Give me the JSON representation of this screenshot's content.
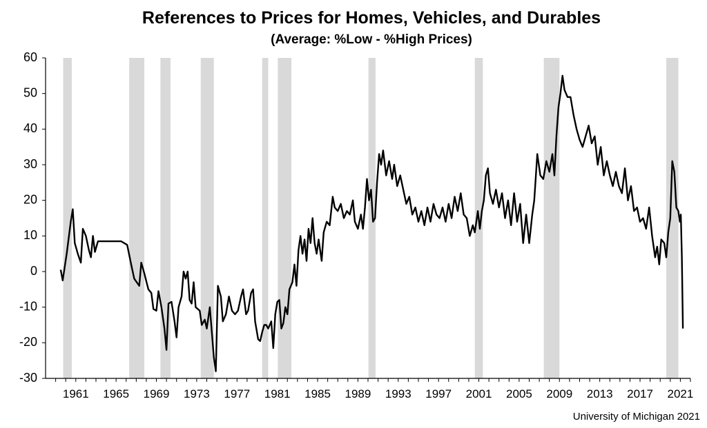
{
  "chart_data": {
    "type": "line",
    "title": "References to Prices for Homes, Vehicles, and Durables",
    "subtitle": "(Average:  %Low - %High Prices)",
    "xlabel": "",
    "ylabel": "",
    "xlim": [
      1958.5,
      2022.5
    ],
    "ylim": [
      -30,
      60
    ],
    "y_ticks": [
      60,
      50,
      40,
      30,
      20,
      10,
      0,
      -10,
      -20,
      -30
    ],
    "x_ticks": [
      "1961",
      "1965",
      "1969",
      "1973",
      "1977",
      "1981",
      "1985",
      "1989",
      "1993",
      "1997",
      "2001",
      "2005",
      "2009",
      "2013",
      "2017",
      "2021"
    ],
    "grid": false,
    "legend": "none",
    "line_color": "#000000",
    "recession_color": "#d9d9d9",
    "recessions": [
      [
        1960.25,
        1961.1
      ],
      [
        1966.8,
        1968.3
      ],
      [
        1969.9,
        1970.9
      ],
      [
        1973.9,
        1975.2
      ],
      [
        1980.0,
        1980.6
      ],
      [
        1981.55,
        1982.9
      ],
      [
        1990.55,
        1991.25
      ],
      [
        2001.1,
        2001.9
      ],
      [
        2007.95,
        2009.5
      ],
      [
        2020.1,
        2021.3
      ]
    ],
    "series": [
      {
        "points": [
          [
            1960.0,
            0.5
          ],
          [
            1960.2,
            -2.5
          ],
          [
            1960.6,
            5
          ],
          [
            1961.0,
            14
          ],
          [
            1961.2,
            17.5
          ],
          [
            1961.4,
            8
          ],
          [
            1961.7,
            5
          ],
          [
            1962.0,
            2.5
          ],
          [
            1962.2,
            12
          ],
          [
            1962.5,
            10
          ],
          [
            1962.8,
            6
          ],
          [
            1963.0,
            4
          ],
          [
            1963.2,
            10
          ],
          [
            1963.4,
            5.5
          ],
          [
            1963.7,
            8.5
          ],
          [
            1964.0,
            8.5
          ],
          [
            1965.0,
            8.5
          ],
          [
            1966.0,
            8.5
          ],
          [
            1966.6,
            7.5
          ],
          [
            1967.0,
            2
          ],
          [
            1967.3,
            -2
          ],
          [
            1967.8,
            -4
          ],
          [
            1968.0,
            2.5
          ],
          [
            1968.3,
            -0.5
          ],
          [
            1968.7,
            -5
          ],
          [
            1969.0,
            -6
          ],
          [
            1969.2,
            -10.5
          ],
          [
            1969.5,
            -11
          ],
          [
            1969.7,
            -5.5
          ],
          [
            1970.0,
            -10
          ],
          [
            1970.3,
            -16
          ],
          [
            1970.5,
            -22
          ],
          [
            1970.7,
            -9
          ],
          [
            1971.0,
            -8.5
          ],
          [
            1971.3,
            -14
          ],
          [
            1971.5,
            -18.5
          ],
          [
            1971.7,
            -10
          ],
          [
            1972.0,
            -7
          ],
          [
            1972.2,
            0
          ],
          [
            1972.4,
            -2
          ],
          [
            1972.6,
            0
          ],
          [
            1972.8,
            -8
          ],
          [
            1973.0,
            -9
          ],
          [
            1973.2,
            -3
          ],
          [
            1973.4,
            -10
          ],
          [
            1973.8,
            -11
          ],
          [
            1974.0,
            -15
          ],
          [
            1974.3,
            -13.5
          ],
          [
            1974.5,
            -16
          ],
          [
            1974.8,
            -10
          ],
          [
            1975.0,
            -17
          ],
          [
            1975.2,
            -24
          ],
          [
            1975.4,
            -28
          ],
          [
            1975.6,
            -4
          ],
          [
            1975.9,
            -7
          ],
          [
            1976.1,
            -14
          ],
          [
            1976.4,
            -12
          ],
          [
            1976.7,
            -7
          ],
          [
            1977.0,
            -11
          ],
          [
            1977.3,
            -12
          ],
          [
            1977.6,
            -11
          ],
          [
            1977.9,
            -7
          ],
          [
            1978.1,
            -5
          ],
          [
            1978.4,
            -12
          ],
          [
            1978.6,
            -11
          ],
          [
            1978.9,
            -6
          ],
          [
            1979.1,
            -5
          ],
          [
            1979.3,
            -14
          ],
          [
            1979.6,
            -19
          ],
          [
            1979.8,
            -19.5
          ],
          [
            1980.0,
            -17
          ],
          [
            1980.2,
            -15
          ],
          [
            1980.4,
            -15
          ],
          [
            1980.6,
            -16
          ],
          [
            1980.9,
            -14
          ],
          [
            1981.1,
            -21.5
          ],
          [
            1981.3,
            -12
          ],
          [
            1981.5,
            -8.5
          ],
          [
            1981.7,
            -8
          ],
          [
            1981.9,
            -16
          ],
          [
            1982.1,
            -14.5
          ],
          [
            1982.3,
            -10
          ],
          [
            1982.5,
            -12
          ],
          [
            1982.7,
            -5
          ],
          [
            1983.0,
            -3
          ],
          [
            1983.2,
            2
          ],
          [
            1983.4,
            -4
          ],
          [
            1983.6,
            6
          ],
          [
            1983.8,
            10
          ],
          [
            1984.0,
            5
          ],
          [
            1984.2,
            9
          ],
          [
            1984.4,
            3
          ],
          [
            1984.6,
            12
          ],
          [
            1984.8,
            8
          ],
          [
            1985.0,
            15
          ],
          [
            1985.2,
            8
          ],
          [
            1985.4,
            5
          ],
          [
            1985.6,
            9
          ],
          [
            1985.9,
            3
          ],
          [
            1986.1,
            11
          ],
          [
            1986.4,
            14
          ],
          [
            1986.7,
            13
          ],
          [
            1987.0,
            21
          ],
          [
            1987.2,
            18
          ],
          [
            1987.5,
            17
          ],
          [
            1987.8,
            19
          ],
          [
            1988.1,
            15
          ],
          [
            1988.4,
            17
          ],
          [
            1988.7,
            16
          ],
          [
            1989.0,
            20
          ],
          [
            1989.2,
            14
          ],
          [
            1989.5,
            12
          ],
          [
            1989.8,
            16
          ],
          [
            1990.0,
            12
          ],
          [
            1990.2,
            18
          ],
          [
            1990.4,
            26
          ],
          [
            1990.6,
            20
          ],
          [
            1990.8,
            23
          ],
          [
            1991.0,
            14
          ],
          [
            1991.2,
            15
          ],
          [
            1991.4,
            25
          ],
          [
            1991.6,
            33
          ],
          [
            1991.8,
            30
          ],
          [
            1992.0,
            34
          ],
          [
            1992.3,
            27
          ],
          [
            1992.6,
            31
          ],
          [
            1992.9,
            26
          ],
          [
            1993.1,
            30
          ],
          [
            1993.4,
            24
          ],
          [
            1993.7,
            27
          ],
          [
            1994.0,
            23
          ],
          [
            1994.3,
            19
          ],
          [
            1994.6,
            21
          ],
          [
            1994.9,
            16
          ],
          [
            1995.2,
            18
          ],
          [
            1995.5,
            14
          ],
          [
            1995.8,
            17
          ],
          [
            1996.1,
            13
          ],
          [
            1996.4,
            18
          ],
          [
            1996.7,
            14
          ],
          [
            1997.0,
            19
          ],
          [
            1997.3,
            16
          ],
          [
            1997.6,
            15
          ],
          [
            1997.9,
            18
          ],
          [
            1998.2,
            14
          ],
          [
            1998.5,
            19
          ],
          [
            1998.8,
            15
          ],
          [
            1999.1,
            21
          ],
          [
            1999.4,
            17
          ],
          [
            1999.7,
            22
          ],
          [
            2000.0,
            16
          ],
          [
            2000.3,
            15
          ],
          [
            2000.6,
            10
          ],
          [
            2000.9,
            13
          ],
          [
            2001.1,
            11
          ],
          [
            2001.4,
            17
          ],
          [
            2001.6,
            12
          ],
          [
            2001.8,
            17
          ],
          [
            2002.0,
            20
          ],
          [
            2002.2,
            27
          ],
          [
            2002.4,
            29
          ],
          [
            2002.6,
            22
          ],
          [
            2002.9,
            19
          ],
          [
            2003.2,
            23
          ],
          [
            2003.5,
            18
          ],
          [
            2003.8,
            22
          ],
          [
            2004.1,
            15
          ],
          [
            2004.4,
            20
          ],
          [
            2004.7,
            13
          ],
          [
            2005.0,
            22
          ],
          [
            2005.3,
            14
          ],
          [
            2005.6,
            19
          ],
          [
            2005.9,
            8
          ],
          [
            2006.2,
            16
          ],
          [
            2006.5,
            8
          ],
          [
            2006.8,
            16
          ],
          [
            2007.0,
            20
          ],
          [
            2007.3,
            33
          ],
          [
            2007.6,
            27
          ],
          [
            2007.9,
            26
          ],
          [
            2008.2,
            31
          ],
          [
            2008.5,
            28
          ],
          [
            2008.8,
            33
          ],
          [
            2009.0,
            27
          ],
          [
            2009.2,
            38
          ],
          [
            2009.4,
            46
          ],
          [
            2009.6,
            50
          ],
          [
            2009.8,
            55
          ],
          [
            2010.0,
            51
          ],
          [
            2010.3,
            49
          ],
          [
            2010.6,
            49
          ],
          [
            2010.9,
            44
          ],
          [
            2011.2,
            40
          ],
          [
            2011.5,
            37
          ],
          [
            2011.8,
            35
          ],
          [
            2012.1,
            38
          ],
          [
            2012.4,
            41
          ],
          [
            2012.7,
            36
          ],
          [
            2013.0,
            38
          ],
          [
            2013.3,
            30
          ],
          [
            2013.6,
            35
          ],
          [
            2013.9,
            27
          ],
          [
            2014.2,
            31
          ],
          [
            2014.5,
            27
          ],
          [
            2014.8,
            24
          ],
          [
            2015.1,
            28
          ],
          [
            2015.4,
            24
          ],
          [
            2015.7,
            22
          ],
          [
            2016.0,
            29
          ],
          [
            2016.3,
            20
          ],
          [
            2016.6,
            24
          ],
          [
            2016.9,
            17
          ],
          [
            2017.2,
            18
          ],
          [
            2017.5,
            14
          ],
          [
            2017.8,
            15
          ],
          [
            2018.1,
            12
          ],
          [
            2018.4,
            18
          ],
          [
            2018.7,
            10
          ],
          [
            2019.0,
            4
          ],
          [
            2019.2,
            7
          ],
          [
            2019.4,
            2
          ],
          [
            2019.6,
            9
          ],
          [
            2019.9,
            8
          ],
          [
            2020.1,
            4
          ],
          [
            2020.3,
            11
          ],
          [
            2020.5,
            15
          ],
          [
            2020.7,
            31
          ],
          [
            2020.9,
            28
          ],
          [
            2021.1,
            18
          ],
          [
            2021.3,
            17
          ],
          [
            2021.45,
            14
          ],
          [
            2021.55,
            16
          ],
          [
            2021.65,
            4
          ],
          [
            2021.75,
            -16
          ]
        ]
      }
    ],
    "source": "University of Michigan 2021"
  }
}
